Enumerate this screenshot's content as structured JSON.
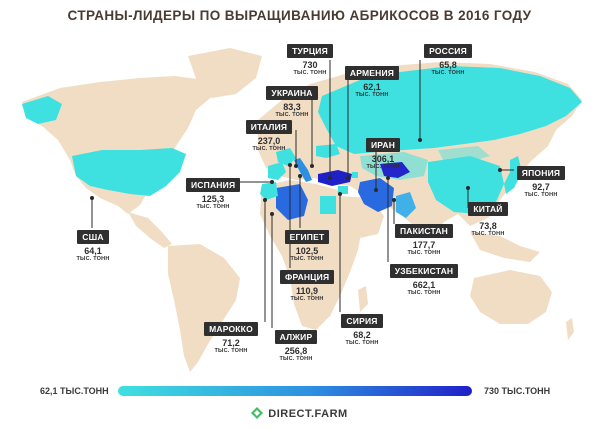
{
  "title": "СТРАНЫ-ЛИДЕРЫ ПО ВЫРАЩИВАНИЮ АБРИКОСОВ В 2016 ГОДУ",
  "unit": "ТЫС. ТОНН",
  "countries": {
    "usa": {
      "name": "США",
      "value": "64,1"
    },
    "spain": {
      "name": "ИСПАНИЯ",
      "value": "125,3"
    },
    "morocco": {
      "name": "МАРОККО",
      "value": "71,2"
    },
    "algeria": {
      "name": "АЛЖИР",
      "value": "256,8"
    },
    "france": {
      "name": "ФРАНЦИЯ",
      "value": "110,9"
    },
    "egypt": {
      "name": "ЕГИПЕТ",
      "value": "102,5"
    },
    "italy": {
      "name": "ИТАЛИЯ",
      "value": "237,0"
    },
    "ukraine": {
      "name": "УКРАИНА",
      "value": "83,3"
    },
    "turkey": {
      "name": "ТУРЦИЯ",
      "value": "730"
    },
    "armenia": {
      "name": "АРМЕНИЯ",
      "value": "62,1"
    },
    "russia": {
      "name": "РОССИЯ",
      "value": "65,8"
    },
    "iran": {
      "name": "ИРАН",
      "value": "306,1"
    },
    "syria": {
      "name": "СИРИЯ",
      "value": "68,2"
    },
    "pakistan": {
      "name": "ПАКИСТАН",
      "value": "177,7"
    },
    "uzbekistan": {
      "name": "УЗБЕКИСТАН",
      "value": "662,1"
    },
    "china": {
      "name": "КИТАЙ",
      "value": "73,8"
    },
    "japan": {
      "name": "ЯПОНИЯ",
      "value": "92,7"
    }
  },
  "legend": {
    "min_label": "62,1 ТЫС.ТОНН",
    "max_label": "730 ТЫС.ТОНН",
    "min_color": "#3fe0e0",
    "max_color": "#2020c8"
  },
  "brand": "DIRECT.FARM",
  "colors": {
    "land": "#f1ddc4",
    "ocean": "#ffffff",
    "low_value": "#3fe0e0",
    "high_value": "#2020c8",
    "mid_value": "#2d8fe0",
    "label_bg": "#2f2f2f",
    "title": "#4a3b32"
  }
}
